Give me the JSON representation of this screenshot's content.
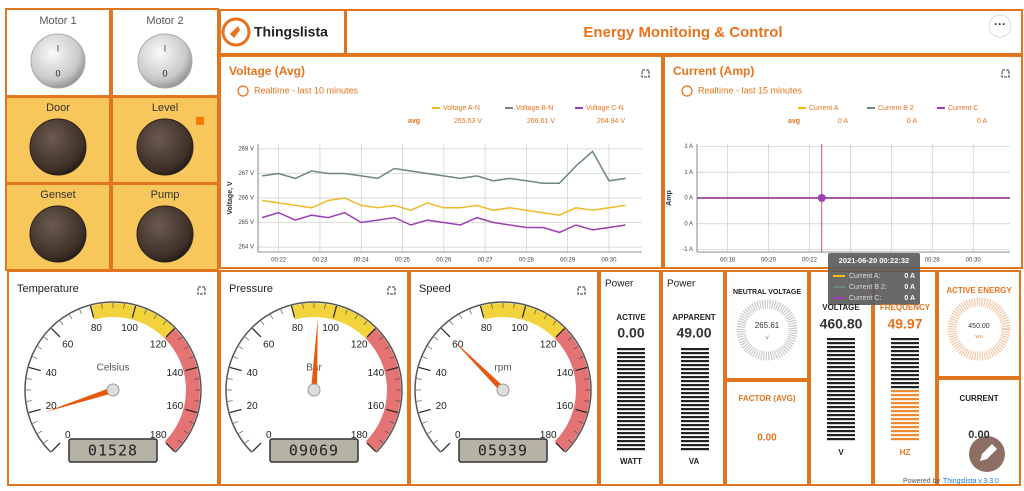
{
  "header": {
    "logo": "Thingslista",
    "title": "Energy Monitoing & Control"
  },
  "switches": [
    {
      "label": "Motor 1",
      "on": "I",
      "off": "0"
    },
    {
      "label": "Motor 2",
      "on": "I",
      "off": "0"
    }
  ],
  "lamps": [
    "Door",
    "Level",
    "Genset",
    "Pump"
  ],
  "chart_data": [
    {
      "type": "line",
      "title": "Voltage (Avg)",
      "subtitle": "Realtime - last 10 minutes",
      "y_label": "Voltage, V",
      "avg_label": "avg",
      "x": [
        21.6,
        22.0,
        22.4,
        22.8,
        23.2,
        23.6,
        24.0,
        24.4,
        24.8,
        25.2,
        25.6,
        26.0,
        26.4,
        26.8,
        27.2,
        27.6,
        28.0,
        28.4,
        28.8,
        29.2,
        29.6,
        30.0,
        30.4
      ],
      "series": [
        {
          "name": "Voltage A-N",
          "color": "#f0b928",
          "avg": "265.53 V",
          "values": [
            265.9,
            265.8,
            265.7,
            265.6,
            265.9,
            266.0,
            265.7,
            265.6,
            265.7,
            265.5,
            265.8,
            265.6,
            265.6,
            265.7,
            265.5,
            265.6,
            265.5,
            265.4,
            265.3,
            265.6,
            265.5,
            265.6,
            265.7
          ]
        },
        {
          "name": "Voltage B-N",
          "color": "#6f8585",
          "avg": "266.61 V",
          "values": [
            266.9,
            267.0,
            266.8,
            267.1,
            267.0,
            267.0,
            266.9,
            266.8,
            267.2,
            267.1,
            267.0,
            266.9,
            266.8,
            266.9,
            266.7,
            266.8,
            266.7,
            266.6,
            266.6,
            267.3,
            267.9,
            266.7,
            266.8
          ]
        },
        {
          "name": "Voltage C-N",
          "color": "#9c3fb5",
          "avg": "264.94 V",
          "values": [
            265.2,
            265.4,
            265.1,
            265.3,
            265.2,
            265.4,
            265.0,
            265.1,
            265.2,
            264.9,
            265.1,
            265.0,
            264.9,
            265.2,
            265.0,
            264.9,
            264.8,
            264.8,
            264.6,
            264.9,
            264.7,
            264.8,
            264.9
          ]
        }
      ],
      "xlim": [
        21.5,
        30.8
      ],
      "xticks": [
        {
          "value": 22,
          "label": "00:22"
        },
        {
          "value": 23,
          "label": "00:23"
        },
        {
          "value": 24,
          "label": "00:24"
        },
        {
          "value": 25,
          "label": "00:25"
        },
        {
          "value": 26,
          "label": "00:26"
        },
        {
          "value": 27,
          "label": "00:27"
        },
        {
          "value": 28,
          "label": "00:28"
        },
        {
          "value": 29,
          "label": "00:29"
        },
        {
          "value": 30,
          "label": "00:30"
        }
      ],
      "ylim": [
        263.8,
        268.2
      ],
      "yticks": [
        {
          "value": 264,
          "label": "264 V"
        },
        {
          "value": 265,
          "label": "265 V"
        },
        {
          "value": 266,
          "label": "266 V"
        },
        {
          "value": 267,
          "label": "267 V"
        },
        {
          "value": 268,
          "label": "268 V"
        }
      ],
      "grid": true
    },
    {
      "type": "line",
      "title": "Current (Amp)",
      "subtitle": "Realtime - last 15 minutes",
      "y_label": "Amp",
      "avg_label": "avg",
      "x": [
        16.5,
        19,
        21,
        23,
        25,
        27,
        29,
        31.8
      ],
      "series": [
        {
          "name": "Current A",
          "color": "#f0c000",
          "avg": "0 A",
          "values": [
            0,
            0,
            0,
            0,
            0,
            0,
            0,
            0
          ]
        },
        {
          "name": "Current B 2",
          "color": "#6f8585",
          "avg": "0 A",
          "values": [
            0,
            0,
            0,
            0,
            0,
            0,
            0,
            0
          ]
        },
        {
          "name": "Current C",
          "color": "#9c3fb5",
          "avg": "0 A",
          "values": [
            0,
            0,
            0,
            0,
            0,
            0,
            0,
            0
          ]
        }
      ],
      "xlim": [
        16.5,
        31.8
      ],
      "xticks": [
        {
          "value": 18,
          "label": "00:18"
        },
        {
          "value": 20,
          "label": "00:20"
        },
        {
          "value": 22,
          "label": "00:22"
        },
        {
          "value": 24,
          "label": "00:24"
        },
        {
          "value": 26,
          "label": "00:26"
        },
        {
          "value": 28,
          "label": "00:28"
        },
        {
          "value": 30,
          "label": "00:30"
        }
      ],
      "ylim": [
        -1.05,
        1.05
      ],
      "yticks": [
        {
          "value": -1,
          "label": "-1 A"
        },
        {
          "value": -0.5,
          "label": "0 A"
        },
        {
          "value": 0,
          "label": "0 A"
        },
        {
          "value": 0.5,
          "label": "1 A"
        },
        {
          "value": 1,
          "label": "1 A"
        }
      ],
      "cursor": 22.6,
      "grid": true
    }
  ],
  "tooltip": {
    "time": "2021-06-20 00:22:32",
    "rows": [
      {
        "name": "Current A:",
        "value": "0 A"
      },
      {
        "name": "Current B 2:",
        "value": "0 A"
      },
      {
        "name": "Current C:",
        "value": "0 A"
      }
    ]
  },
  "gauges": [
    {
      "title": "Temperature",
      "unit": "Celsius",
      "value": 18,
      "lcd": "01528",
      "min": 0,
      "max": 180,
      "ticks": [
        0,
        20,
        40,
        60,
        80,
        100,
        120,
        140,
        160,
        180
      ],
      "bands": [
        {
          "from": 80,
          "to": 120,
          "color": "#f2d33c"
        },
        {
          "from": 120,
          "to": 180,
          "color": "#e57373"
        }
      ]
    },
    {
      "title": "Pressure",
      "unit": "Bar",
      "value": 92,
      "lcd": "09069",
      "min": 0,
      "max": 180,
      "ticks": [
        0,
        20,
        40,
        60,
        80,
        100,
        120,
        140,
        160,
        180
      ],
      "bands": [
        {
          "from": 80,
          "to": 120,
          "color": "#f2d33c"
        },
        {
          "from": 120,
          "to": 180,
          "color": "#e57373"
        }
      ]
    },
    {
      "title": "Speed",
      "unit": "rpm",
      "value": 60,
      "lcd": "05939",
      "min": 0,
      "max": 180,
      "ticks": [
        0,
        20,
        40,
        60,
        80,
        100,
        120,
        140,
        160,
        180
      ],
      "bands": [
        {
          "from": 80,
          "to": 120,
          "color": "#f2d33c"
        },
        {
          "from": 120,
          "to": 180,
          "color": "#e57373"
        }
      ]
    }
  ],
  "meters": [
    {
      "title": "Power",
      "label": "ACTIVE",
      "value": "0.00",
      "unit": "WATT"
    },
    {
      "title": "Power",
      "label": "APPARENT",
      "value": "49.00",
      "unit": "VA"
    },
    {
      "label": "NEUTRAL VOLTAGE",
      "value": "265.61",
      "unit": "V"
    },
    {
      "label": "FACTOR (AVG)",
      "value": "0.00"
    },
    {
      "label": "VOLTAGE",
      "value": "460.80",
      "unit": "V"
    },
    {
      "label": "FREQUENCY",
      "value": "49.97",
      "unit": "HZ"
    },
    {
      "label": "ACTIVE ENERGY",
      "value": "450.00",
      "unit": "WH"
    },
    {
      "label": "CURRENT",
      "value": "0.00"
    }
  ],
  "footer": {
    "prefix": "Powered by",
    "brand": "Thingslista v.3.3.0"
  }
}
